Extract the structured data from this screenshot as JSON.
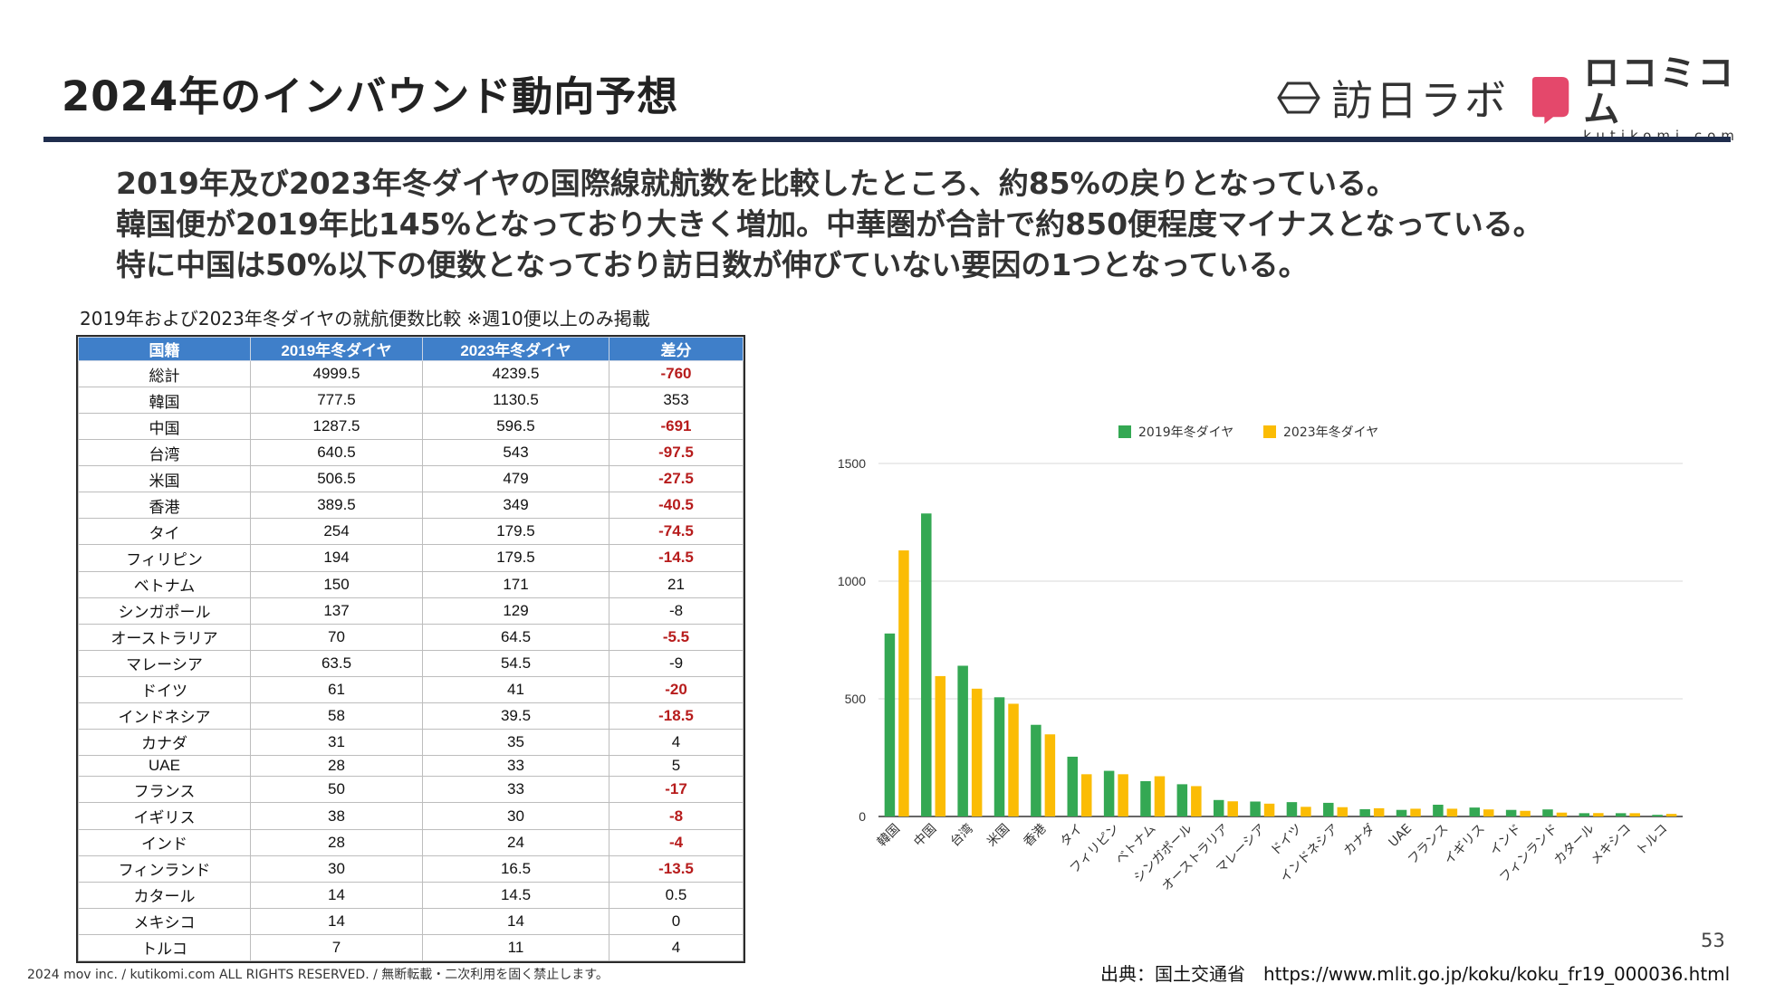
{
  "header": {
    "title": "2024年のインバウンド動向予想",
    "logo_inbound": "訪日ラボ",
    "logo_kutikomi": "ロコミコム",
    "logo_kutikomi_sub": "kutikomi com"
  },
  "summary": {
    "line1": "2019年及び2023年冬ダイヤの国際線就航数を比較したところ、約85%の戻りとなっている。",
    "line2": "韓国便が2019年比145%となっており大きく増加。中華圏が合計で約850便程度マイナスとなっている。",
    "line3": "特に中国は50%以下の便数となっており訪日数が伸びていない要因の1つとなっている。"
  },
  "table": {
    "caption": "2019年および2023年冬ダイヤの就航便数比較 ※週10便以上のみ掲載",
    "headers": [
      "国籍",
      "2019年冬ダイヤ",
      "2023年冬ダイヤ",
      "差分"
    ],
    "rows": [
      {
        "country": "総計",
        "y2019": "4999.5",
        "y2023": "4239.5",
        "diff": "-760",
        "neg": true
      },
      {
        "country": "韓国",
        "y2019": "777.5",
        "y2023": "1130.5",
        "diff": "353",
        "neg": false
      },
      {
        "country": "中国",
        "y2019": "1287.5",
        "y2023": "596.5",
        "diff": "-691",
        "neg": true
      },
      {
        "country": "台湾",
        "y2019": "640.5",
        "y2023": "543",
        "diff": "-97.5",
        "neg": true
      },
      {
        "country": "米国",
        "y2019": "506.5",
        "y2023": "479",
        "diff": "-27.5",
        "neg": true
      },
      {
        "country": "香港",
        "y2019": "389.5",
        "y2023": "349",
        "diff": "-40.5",
        "neg": true
      },
      {
        "country": "タイ",
        "y2019": "254",
        "y2023": "179.5",
        "diff": "-74.5",
        "neg": true
      },
      {
        "country": "フィリピン",
        "y2019": "194",
        "y2023": "179.5",
        "diff": "-14.5",
        "neg": true
      },
      {
        "country": "ベトナム",
        "y2019": "150",
        "y2023": "171",
        "diff": "21",
        "neg": false
      },
      {
        "country": "シンガポール",
        "y2019": "137",
        "y2023": "129",
        "diff": "-8",
        "neg": false
      },
      {
        "country": "オーストラリア",
        "y2019": "70",
        "y2023": "64.5",
        "diff": "-5.5",
        "neg": true
      },
      {
        "country": "マレーシア",
        "y2019": "63.5",
        "y2023": "54.5",
        "diff": "-9",
        "neg": false
      },
      {
        "country": "ドイツ",
        "y2019": "61",
        "y2023": "41",
        "diff": "-20",
        "neg": true
      },
      {
        "country": "インドネシア",
        "y2019": "58",
        "y2023": "39.5",
        "diff": "-18.5",
        "neg": true
      },
      {
        "country": "カナダ",
        "y2019": "31",
        "y2023": "35",
        "diff": "4",
        "neg": false
      },
      {
        "country": "UAE",
        "y2019": "28",
        "y2023": "33",
        "diff": "5",
        "neg": false
      },
      {
        "country": "フランス",
        "y2019": "50",
        "y2023": "33",
        "diff": "-17",
        "neg": true
      },
      {
        "country": "イギリス",
        "y2019": "38",
        "y2023": "30",
        "diff": "-8",
        "neg": true
      },
      {
        "country": "インド",
        "y2019": "28",
        "y2023": "24",
        "diff": "-4",
        "neg": true
      },
      {
        "country": "フィンランド",
        "y2019": "30",
        "y2023": "16.5",
        "diff": "-13.5",
        "neg": true
      },
      {
        "country": "カタール",
        "y2019": "14",
        "y2023": "14.5",
        "diff": "0.5",
        "neg": false
      },
      {
        "country": "メキシコ",
        "y2019": "14",
        "y2023": "14",
        "diff": "0",
        "neg": false
      },
      {
        "country": "トルコ",
        "y2019": "7",
        "y2023": "11",
        "diff": "4",
        "neg": false
      }
    ]
  },
  "chart_data": {
    "type": "bar",
    "title": "",
    "xlabel": "",
    "ylabel": "",
    "ylim": [
      0,
      1500
    ],
    "yticks": [
      0,
      500,
      1000,
      1500
    ],
    "grid": true,
    "legend_position": "top",
    "categories": [
      "韓国",
      "中国",
      "台湾",
      "米国",
      "香港",
      "タイ",
      "フィリピン",
      "ベトナム",
      "シンガポール",
      "オーストラリア",
      "マレーシア",
      "ドイツ",
      "インドネシア",
      "カナダ",
      "UAE",
      "フランス",
      "イギリス",
      "インド",
      "フィンランド",
      "カタール",
      "メキシコ",
      "トルコ"
    ],
    "series": [
      {
        "name": "2019年冬ダイヤ",
        "color": "#34a853",
        "values": [
          777.5,
          1287.5,
          640.5,
          506.5,
          389.5,
          254,
          194,
          150,
          137,
          70,
          63.5,
          61,
          58,
          31,
          28,
          50,
          38,
          28,
          30,
          14,
          14,
          7
        ]
      },
      {
        "name": "2023年冬ダイヤ",
        "color": "#fbbc04",
        "values": [
          1130.5,
          596.5,
          543,
          479,
          349,
          179.5,
          179.5,
          171,
          129,
          64.5,
          54.5,
          41,
          39.5,
          35,
          33,
          33,
          30,
          24,
          16.5,
          14.5,
          14,
          11
        ]
      }
    ]
  },
  "footer": {
    "page_number": "53",
    "source_label": "出典：国土交通省",
    "source_url": "https://www.mlit.go.jp/koku/koku_fr19_000036.html",
    "copyright": "2024 mov inc. / kutikomi.com ALL RIGHTS RESERVED. / 無断転載・二次利用を固く禁止します。"
  }
}
